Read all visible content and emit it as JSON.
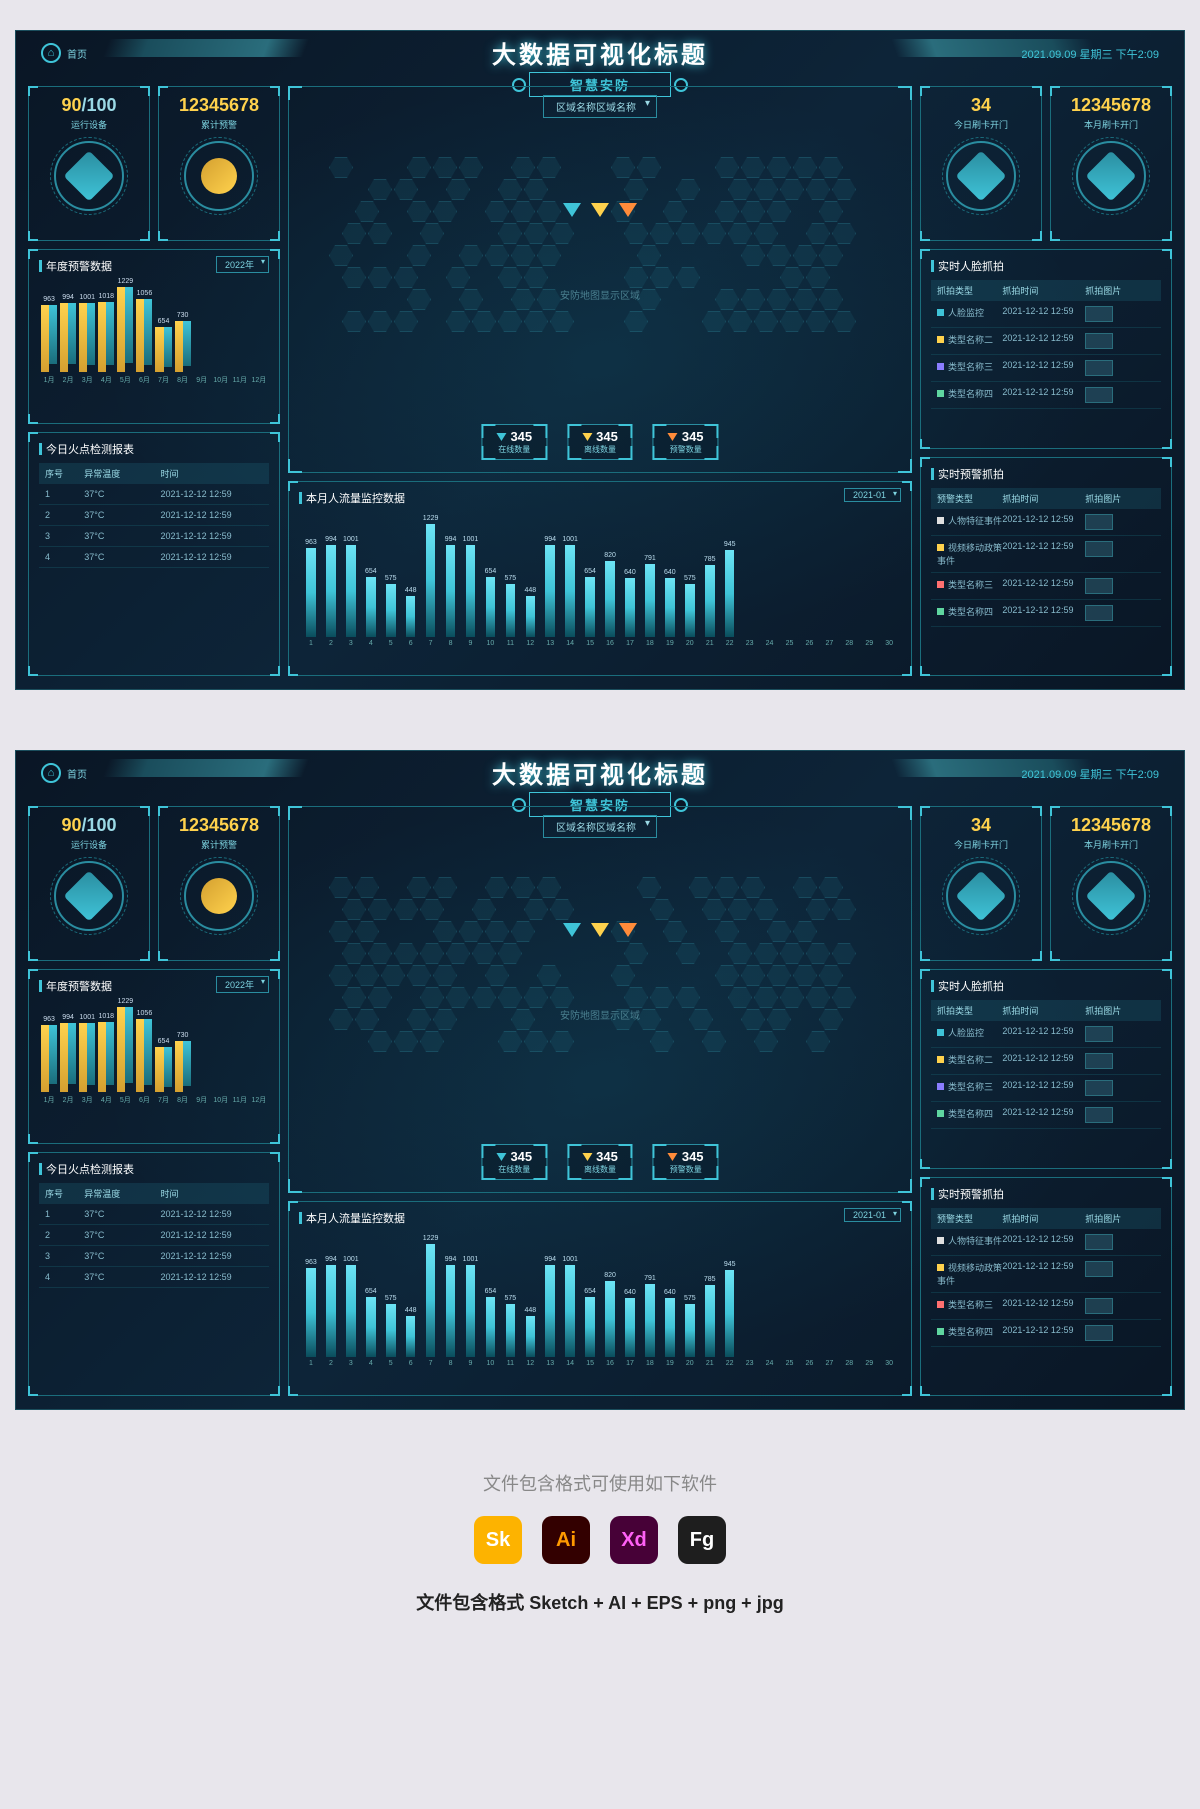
{
  "header": {
    "home_label": "首页",
    "title": "大数据可视化标题",
    "subtitle": "智慧安防",
    "datetime": "2021.09.09 星期三 下午2:09"
  },
  "left_stats": [
    {
      "value_primary": "90",
      "value_secondary": "/100",
      "label": "运行设备",
      "icon_style": "cube"
    },
    {
      "value_primary": "12345678",
      "value_secondary": "",
      "label": "累计预警",
      "icon_style": "yellow"
    }
  ],
  "right_stats": [
    {
      "value_primary": "34",
      "value_secondary": "",
      "label": "今日刷卡开门",
      "icon_style": "hex"
    },
    {
      "value_primary": "12345678",
      "value_secondary": "",
      "label": "本月刷卡开门",
      "icon_style": "ring"
    }
  ],
  "annual_chart": {
    "title": "年度预警数据",
    "selector": "2022年",
    "categories": [
      "1月",
      "2月",
      "3月",
      "4月",
      "5月",
      "6月",
      "7月",
      "8月",
      "9月",
      "10月",
      "11月",
      "12月"
    ],
    "series_a": [
      963,
      994,
      1001,
      1018,
      1229,
      1056,
      654,
      730,
      0,
      0,
      0,
      0
    ],
    "series_b": [
      850,
      880,
      900,
      920,
      1100,
      950,
      580,
      650,
      0,
      0,
      0,
      0
    ],
    "max": 1300,
    "bar_a_color": "#ffd24d",
    "bar_b_color": "#3fc4d8"
  },
  "hotspot_table": {
    "title": "今日火点检测报表",
    "columns": [
      "序号",
      "异常温度",
      "时间"
    ],
    "rows": [
      [
        "1",
        "37°C",
        "2021-12-12 12:59"
      ],
      [
        "2",
        "37°C",
        "2021-12-12 12:59"
      ],
      [
        "3",
        "37°C",
        "2021-12-12 12:59"
      ],
      [
        "4",
        "37°C",
        "2021-12-12 12:59"
      ]
    ]
  },
  "map": {
    "selector": "区域名称区域名称",
    "placeholder": "安防地图显示区域",
    "markers": [
      {
        "color": "#3fc4d8",
        "value": "345",
        "label": "在线数量"
      },
      {
        "color": "#ffd24d",
        "value": "345",
        "label": "离线数量"
      },
      {
        "color": "#ff8c3a",
        "value": "345",
        "label": "预警数量"
      }
    ]
  },
  "flow_chart": {
    "title": "本月人流量监控数据",
    "selector": "2021-01",
    "categories": [
      "1",
      "2",
      "3",
      "4",
      "5",
      "6",
      "7",
      "8",
      "9",
      "10",
      "11",
      "12",
      "13",
      "14",
      "15",
      "16",
      "17",
      "18",
      "19",
      "20",
      "21",
      "22",
      "23",
      "24",
      "25",
      "26",
      "27",
      "28",
      "29",
      "30"
    ],
    "values": [
      963,
      994,
      1001,
      654,
      575,
      448,
      1229,
      994,
      1001,
      654,
      575,
      448,
      994,
      1001,
      654,
      820,
      640,
      791,
      640,
      575,
      785,
      945,
      0,
      0,
      0,
      0,
      0,
      0,
      0,
      0
    ],
    "max": 1300,
    "bar_color": "#3fc4d8"
  },
  "face_table": {
    "title": "实时人脸抓拍",
    "columns": [
      "抓拍类型",
      "抓拍时间",
      "抓拍图片"
    ],
    "rows": [
      {
        "dot": "#3fc4d8",
        "type": "人脸监控",
        "time": "2021-12-12 12:59"
      },
      {
        "dot": "#ffd24d",
        "type": "类型名称二",
        "time": "2021-12-12 12:59"
      },
      {
        "dot": "#8a7dff",
        "type": "类型名称三",
        "time": "2021-12-12 12:59"
      },
      {
        "dot": "#5fd6a0",
        "type": "类型名称四",
        "time": "2021-12-12 12:59"
      }
    ]
  },
  "alert_table": {
    "title": "实时预警抓拍",
    "columns": [
      "预警类型",
      "抓拍时间",
      "抓拍图片"
    ],
    "rows": [
      {
        "dot": "#e0e0e0",
        "type": "人物特征事件",
        "time": "2021-12-12 12:59"
      },
      {
        "dot": "#ffd24d",
        "type": "视频移动政策事件",
        "time": "2021-12-12 12:59"
      },
      {
        "dot": "#ff7070",
        "type": "类型名称三",
        "time": "2021-12-12 12:59"
      },
      {
        "dot": "#5fd6a0",
        "type": "类型名称四",
        "time": "2021-12-12 12:59"
      }
    ]
  },
  "footer": {
    "caption": "文件包含格式可使用如下软件",
    "apps": [
      {
        "label": "Sk",
        "bg": "#fdb300",
        "name": "sketch-icon"
      },
      {
        "label": "Ai",
        "bg": "#330000",
        "fg": "#ff9a00",
        "name": "illustrator-icon"
      },
      {
        "label": "Xd",
        "bg": "#470137",
        "fg": "#ff61f6",
        "name": "xd-icon"
      },
      {
        "label": "Fg",
        "bg": "#1e1e1e",
        "name": "figma-icon"
      }
    ],
    "formats": "文件包含格式 Sketch + AI + EPS + png + jpg"
  }
}
